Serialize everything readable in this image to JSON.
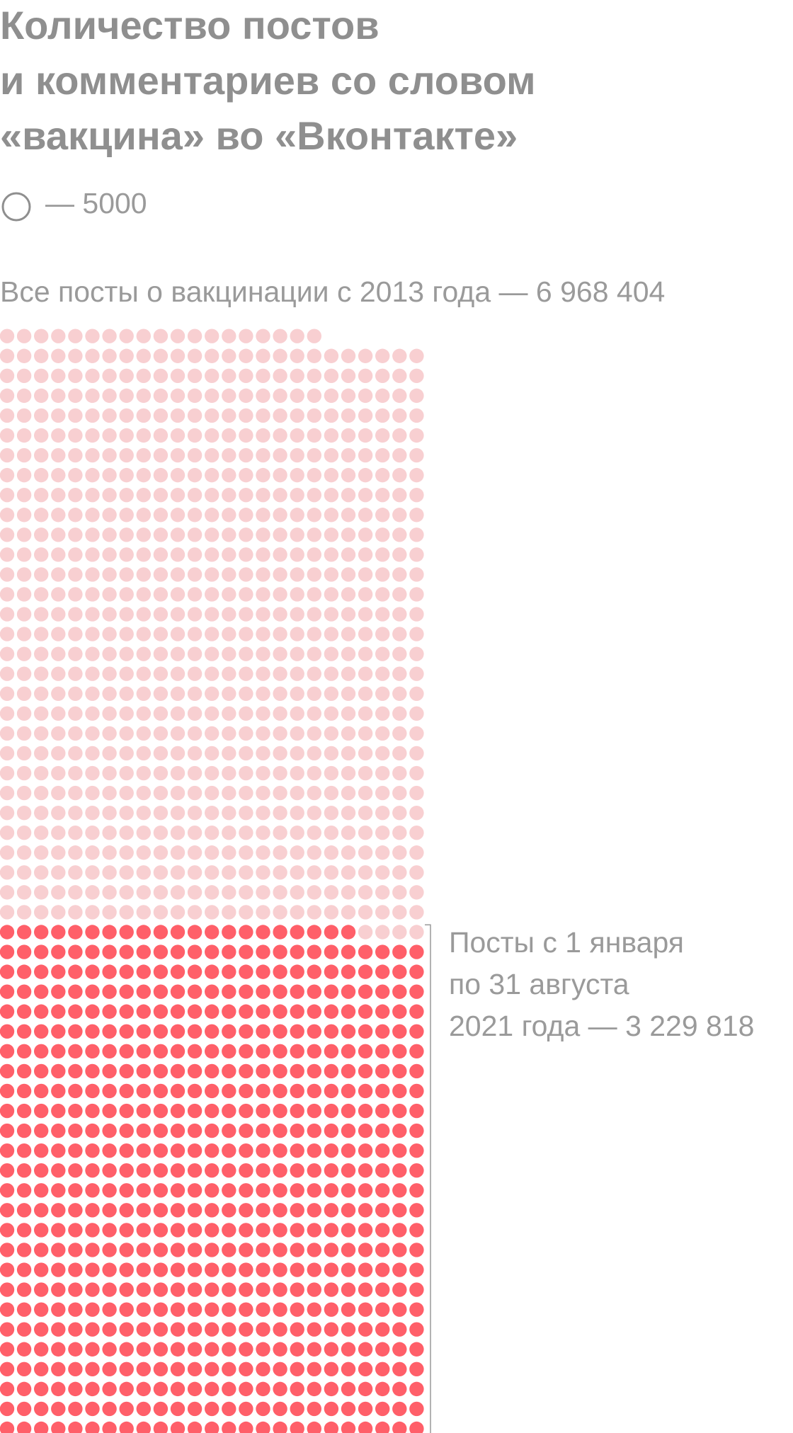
{
  "chart_data": {
    "type": "unit",
    "title": [
      "Количество постов",
      "и комментариев со словом",
      "«вакцина» во «Вконтакте»"
    ],
    "unit": {
      "value": 5000,
      "label": "— 5000"
    },
    "columns": 25,
    "series": [
      {
        "name": [
          "Все посты о вакцинации  с 2013 года — 6 968 404"
        ],
        "color": "#f8cfd1",
        "value": 6968404
      },
      {
        "name": [
          "Посты с 1 января",
          "по 31 августа",
          "2021 года — 3 229 818"
        ],
        "color": "#ff5f69",
        "value": 3229818
      }
    ]
  }
}
